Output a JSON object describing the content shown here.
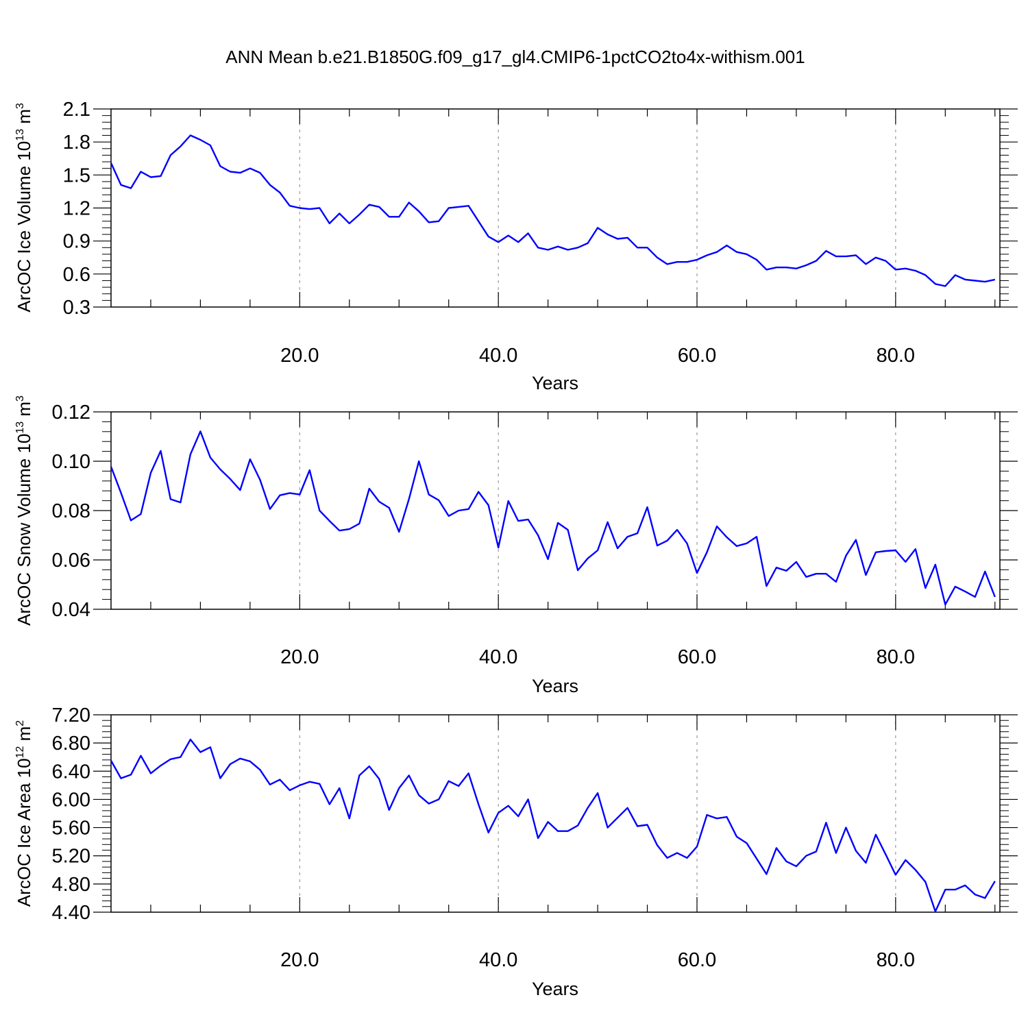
{
  "title": "ANN Mean b.e21.B1850G.f09_g17_gl4.CMIP6-1pctCO2to4x-withism.001",
  "colors": {
    "line": "#0000ff",
    "frame": "#000000",
    "grid": "#999999",
    "background": "#ffffff"
  },
  "chart_data": [
    {
      "type": "line",
      "ylabel": {
        "main": "ArcOC Ice Volume 10",
        "exponent": "13",
        "unit": " m",
        "unit_exponent": "3"
      },
      "xlabel": "Years",
      "xlim": [
        1,
        90
      ],
      "ylim": [
        0.3,
        2.1
      ],
      "xticks": [
        20,
        40,
        60,
        80
      ],
      "xtick_labels": [
        "20.0",
        "40.0",
        "60.0",
        "80.0"
      ],
      "yticks": [
        0.3,
        0.6,
        0.9,
        1.2,
        1.5,
        1.8,
        2.1
      ],
      "ytick_labels": [
        "0.3",
        "0.6",
        "0.9",
        "1.2",
        "1.5",
        "1.8",
        "2.1"
      ],
      "grid": "vertical dashed at x ticks",
      "series": [
        {
          "color": "#0000ff",
          "x_start": 1,
          "x_step": 1,
          "values": [
            1.61,
            1.41,
            1.38,
            1.53,
            1.48,
            1.49,
            1.68,
            1.76,
            1.86,
            1.82,
            1.77,
            1.58,
            1.53,
            1.52,
            1.56,
            1.52,
            1.41,
            1.34,
            1.22,
            1.2,
            1.19,
            1.2,
            1.06,
            1.15,
            1.06,
            1.14,
            1.23,
            1.21,
            1.12,
            1.12,
            1.25,
            1.17,
            1.07,
            1.08,
            1.2,
            1.21,
            1.22,
            1.08,
            0.94,
            0.89,
            0.95,
            0.89,
            0.97,
            0.84,
            0.82,
            0.85,
            0.82,
            0.84,
            0.88,
            1.02,
            0.96,
            0.92,
            0.93,
            0.84,
            0.84,
            0.75,
            0.69,
            0.71,
            0.71,
            0.73,
            0.77,
            0.8,
            0.86,
            0.8,
            0.78,
            0.73,
            0.64,
            0.66,
            0.66,
            0.65,
            0.68,
            0.72,
            0.81,
            0.76,
            0.76,
            0.77,
            0.69,
            0.75,
            0.72,
            0.64,
            0.65,
            0.63,
            0.59,
            0.51,
            0.49,
            0.59,
            0.55,
            0.54,
            0.53,
            0.55
          ]
        }
      ]
    },
    {
      "type": "line",
      "ylabel": {
        "main": "ArcOC Snow Volume 10",
        "exponent": "13",
        "unit": " m",
        "unit_exponent": "3"
      },
      "xlabel": "Years",
      "xlim": [
        1,
        90
      ],
      "ylim": [
        0.04,
        0.12
      ],
      "xticks": [
        20,
        40,
        60,
        80
      ],
      "xtick_labels": [
        "20.0",
        "40.0",
        "60.0",
        "80.0"
      ],
      "yticks": [
        0.04,
        0.06,
        0.08,
        0.1,
        0.12
      ],
      "ytick_labels": [
        "0.04",
        "0.06",
        "0.08",
        "0.10",
        "0.12"
      ],
      "grid": "vertical dashed at x ticks",
      "series": [
        {
          "color": "#0000ff",
          "x_start": 1,
          "x_step": 1,
          "values": [
            0.0978,
            0.0872,
            0.076,
            0.0786,
            0.0953,
            0.1042,
            0.0846,
            0.0833,
            0.1028,
            0.1121,
            0.1015,
            0.0967,
            0.0928,
            0.0883,
            0.1008,
            0.0925,
            0.0806,
            0.0862,
            0.0871,
            0.0865,
            0.0964,
            0.08,
            0.0758,
            0.0719,
            0.0725,
            0.0747,
            0.0889,
            0.0836,
            0.0811,
            0.0714,
            0.0846,
            0.1,
            0.0865,
            0.0842,
            0.0778,
            0.08,
            0.0806,
            0.0876,
            0.0822,
            0.065,
            0.0839,
            0.0758,
            0.0764,
            0.07,
            0.0603,
            0.075,
            0.0722,
            0.0558,
            0.0606,
            0.0639,
            0.0753,
            0.0647,
            0.0694,
            0.0708,
            0.0814,
            0.0658,
            0.0678,
            0.0722,
            0.0667,
            0.0547,
            0.0631,
            0.0736,
            0.0692,
            0.0656,
            0.0667,
            0.0694,
            0.0494,
            0.0569,
            0.0556,
            0.0592,
            0.0531,
            0.0544,
            0.0544,
            0.0511,
            0.0617,
            0.0681,
            0.0539,
            0.0631,
            0.0636,
            0.0639,
            0.0592,
            0.0644,
            0.0486,
            0.0581,
            0.0419,
            0.0492,
            0.0472,
            0.045,
            0.0553,
            0.045
          ]
        }
      ]
    },
    {
      "type": "line",
      "ylabel": {
        "main": "ArcOC Ice Area 10",
        "exponent": "12",
        "unit": " m",
        "unit_exponent": "2"
      },
      "xlabel": "Years",
      "xlim": [
        1,
        90
      ],
      "ylim": [
        4.4,
        7.2
      ],
      "xticks": [
        20,
        40,
        60,
        80
      ],
      "xtick_labels": [
        "20.0",
        "40.0",
        "60.0",
        "80.0"
      ],
      "yticks": [
        4.4,
        4.8,
        5.2,
        5.6,
        6.0,
        6.4,
        6.8,
        7.2
      ],
      "ytick_labels": [
        "4.40",
        "4.80",
        "5.20",
        "5.60",
        "6.00",
        "6.40",
        "6.80",
        "7.20"
      ],
      "grid": "vertical dashed at x ticks",
      "series": [
        {
          "color": "#0000ff",
          "x_start": 1,
          "x_step": 1,
          "values": [
            6.55,
            6.3,
            6.35,
            6.62,
            6.37,
            6.48,
            6.57,
            6.6,
            6.85,
            6.67,
            6.74,
            6.3,
            6.5,
            6.58,
            6.54,
            6.42,
            6.21,
            6.28,
            6.13,
            6.2,
            6.25,
            6.22,
            5.93,
            6.16,
            5.73,
            6.34,
            6.47,
            6.29,
            5.85,
            6.16,
            6.34,
            6.06,
            5.94,
            6.0,
            6.26,
            6.19,
            6.37,
            5.93,
            5.53,
            5.81,
            5.91,
            5.76,
            6.0,
            5.45,
            5.68,
            5.55,
            5.55,
            5.63,
            5.88,
            6.09,
            5.6,
            5.74,
            5.88,
            5.62,
            5.64,
            5.35,
            5.17,
            5.24,
            5.17,
            5.33,
            5.78,
            5.73,
            5.75,
            5.47,
            5.38,
            5.16,
            4.94,
            5.31,
            5.12,
            5.05,
            5.2,
            5.26,
            5.67,
            5.24,
            5.6,
            5.27,
            5.1,
            5.5,
            5.22,
            4.93,
            5.14,
            5.0,
            4.83,
            4.41,
            4.72,
            4.72,
            4.78,
            4.65,
            4.6,
            4.84
          ]
        }
      ]
    }
  ]
}
